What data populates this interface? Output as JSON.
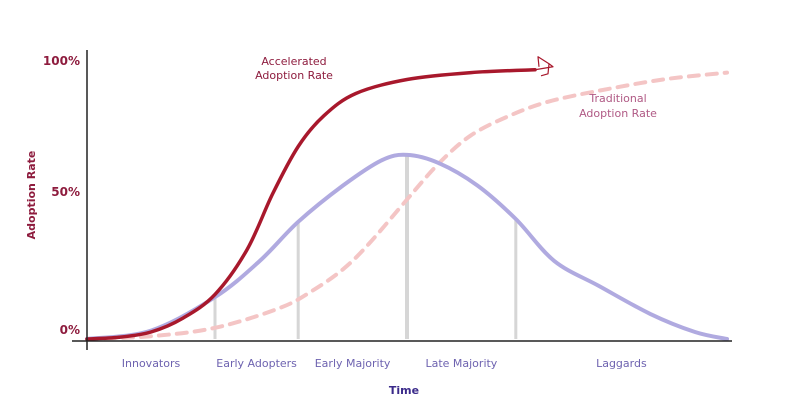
{
  "chart_data": {
    "type": "line",
    "xlabel": "Time",
    "ylabel": "Adoption Rate",
    "yticks": [
      "0%",
      "50%",
      "100%"
    ],
    "ylim": [
      0,
      100
    ],
    "xlim": [
      0,
      100
    ],
    "grid": false,
    "legend": "none",
    "categories": [
      "Innovators",
      "Early Adopters",
      "Early Majority",
      "Late Majority",
      "Laggards"
    ],
    "segment_boundaries": [
      20,
      33,
      50,
      67
    ],
    "annotations": {
      "accelerated": [
        "Accelerated",
        "Adoption Rate"
      ],
      "traditional": [
        "Traditional",
        "Adoption Rate"
      ]
    },
    "colors": {
      "axis": "#222222",
      "tick_text": "#8e1c3e",
      "accelerated": "#a8182c",
      "traditional": "#f4c5c5",
      "bell": "#b0aae0",
      "divider": "#d6d6d6",
      "category_text": "#6e63b0",
      "xlabel": "#3a2a8a",
      "ylabel": "#8e1c3e"
    },
    "series": [
      {
        "key": "accelerated",
        "style": "solid",
        "points": [
          [
            0,
            0
          ],
          [
            5,
            0.6
          ],
          [
            10,
            2.5
          ],
          [
            15,
            7.5
          ],
          [
            20,
            16
          ],
          [
            25,
            32
          ],
          [
            29,
            52
          ],
          [
            33,
            69
          ],
          [
            37,
            80
          ],
          [
            42,
            88
          ],
          [
            50,
            93
          ],
          [
            60,
            95.5
          ],
          [
            70,
            96.5
          ]
        ]
      },
      {
        "key": "traditional",
        "style": "dashed",
        "points": [
          [
            0,
            0
          ],
          [
            10,
            1
          ],
          [
            20,
            4
          ],
          [
            30,
            11
          ],
          [
            35,
            17
          ],
          [
            40,
            25
          ],
          [
            44,
            34
          ],
          [
            50,
            50
          ],
          [
            55,
            63
          ],
          [
            60,
            73
          ],
          [
            66,
            80
          ],
          [
            72,
            85
          ],
          [
            80,
            89
          ],
          [
            90,
            93
          ],
          [
            100,
            95.5
          ]
        ]
      },
      {
        "key": "bell",
        "style": "solid",
        "points": [
          [
            0,
            0
          ],
          [
            10,
            3
          ],
          [
            20,
            15
          ],
          [
            27,
            28
          ],
          [
            33,
            42
          ],
          [
            40,
            55
          ],
          [
            46,
            64
          ],
          [
            50,
            66
          ],
          [
            55,
            63
          ],
          [
            61,
            55
          ],
          [
            67,
            43
          ],
          [
            73,
            28
          ],
          [
            80,
            19
          ],
          [
            88,
            9
          ],
          [
            95,
            2.5
          ],
          [
            100,
            0
          ]
        ]
      }
    ]
  }
}
